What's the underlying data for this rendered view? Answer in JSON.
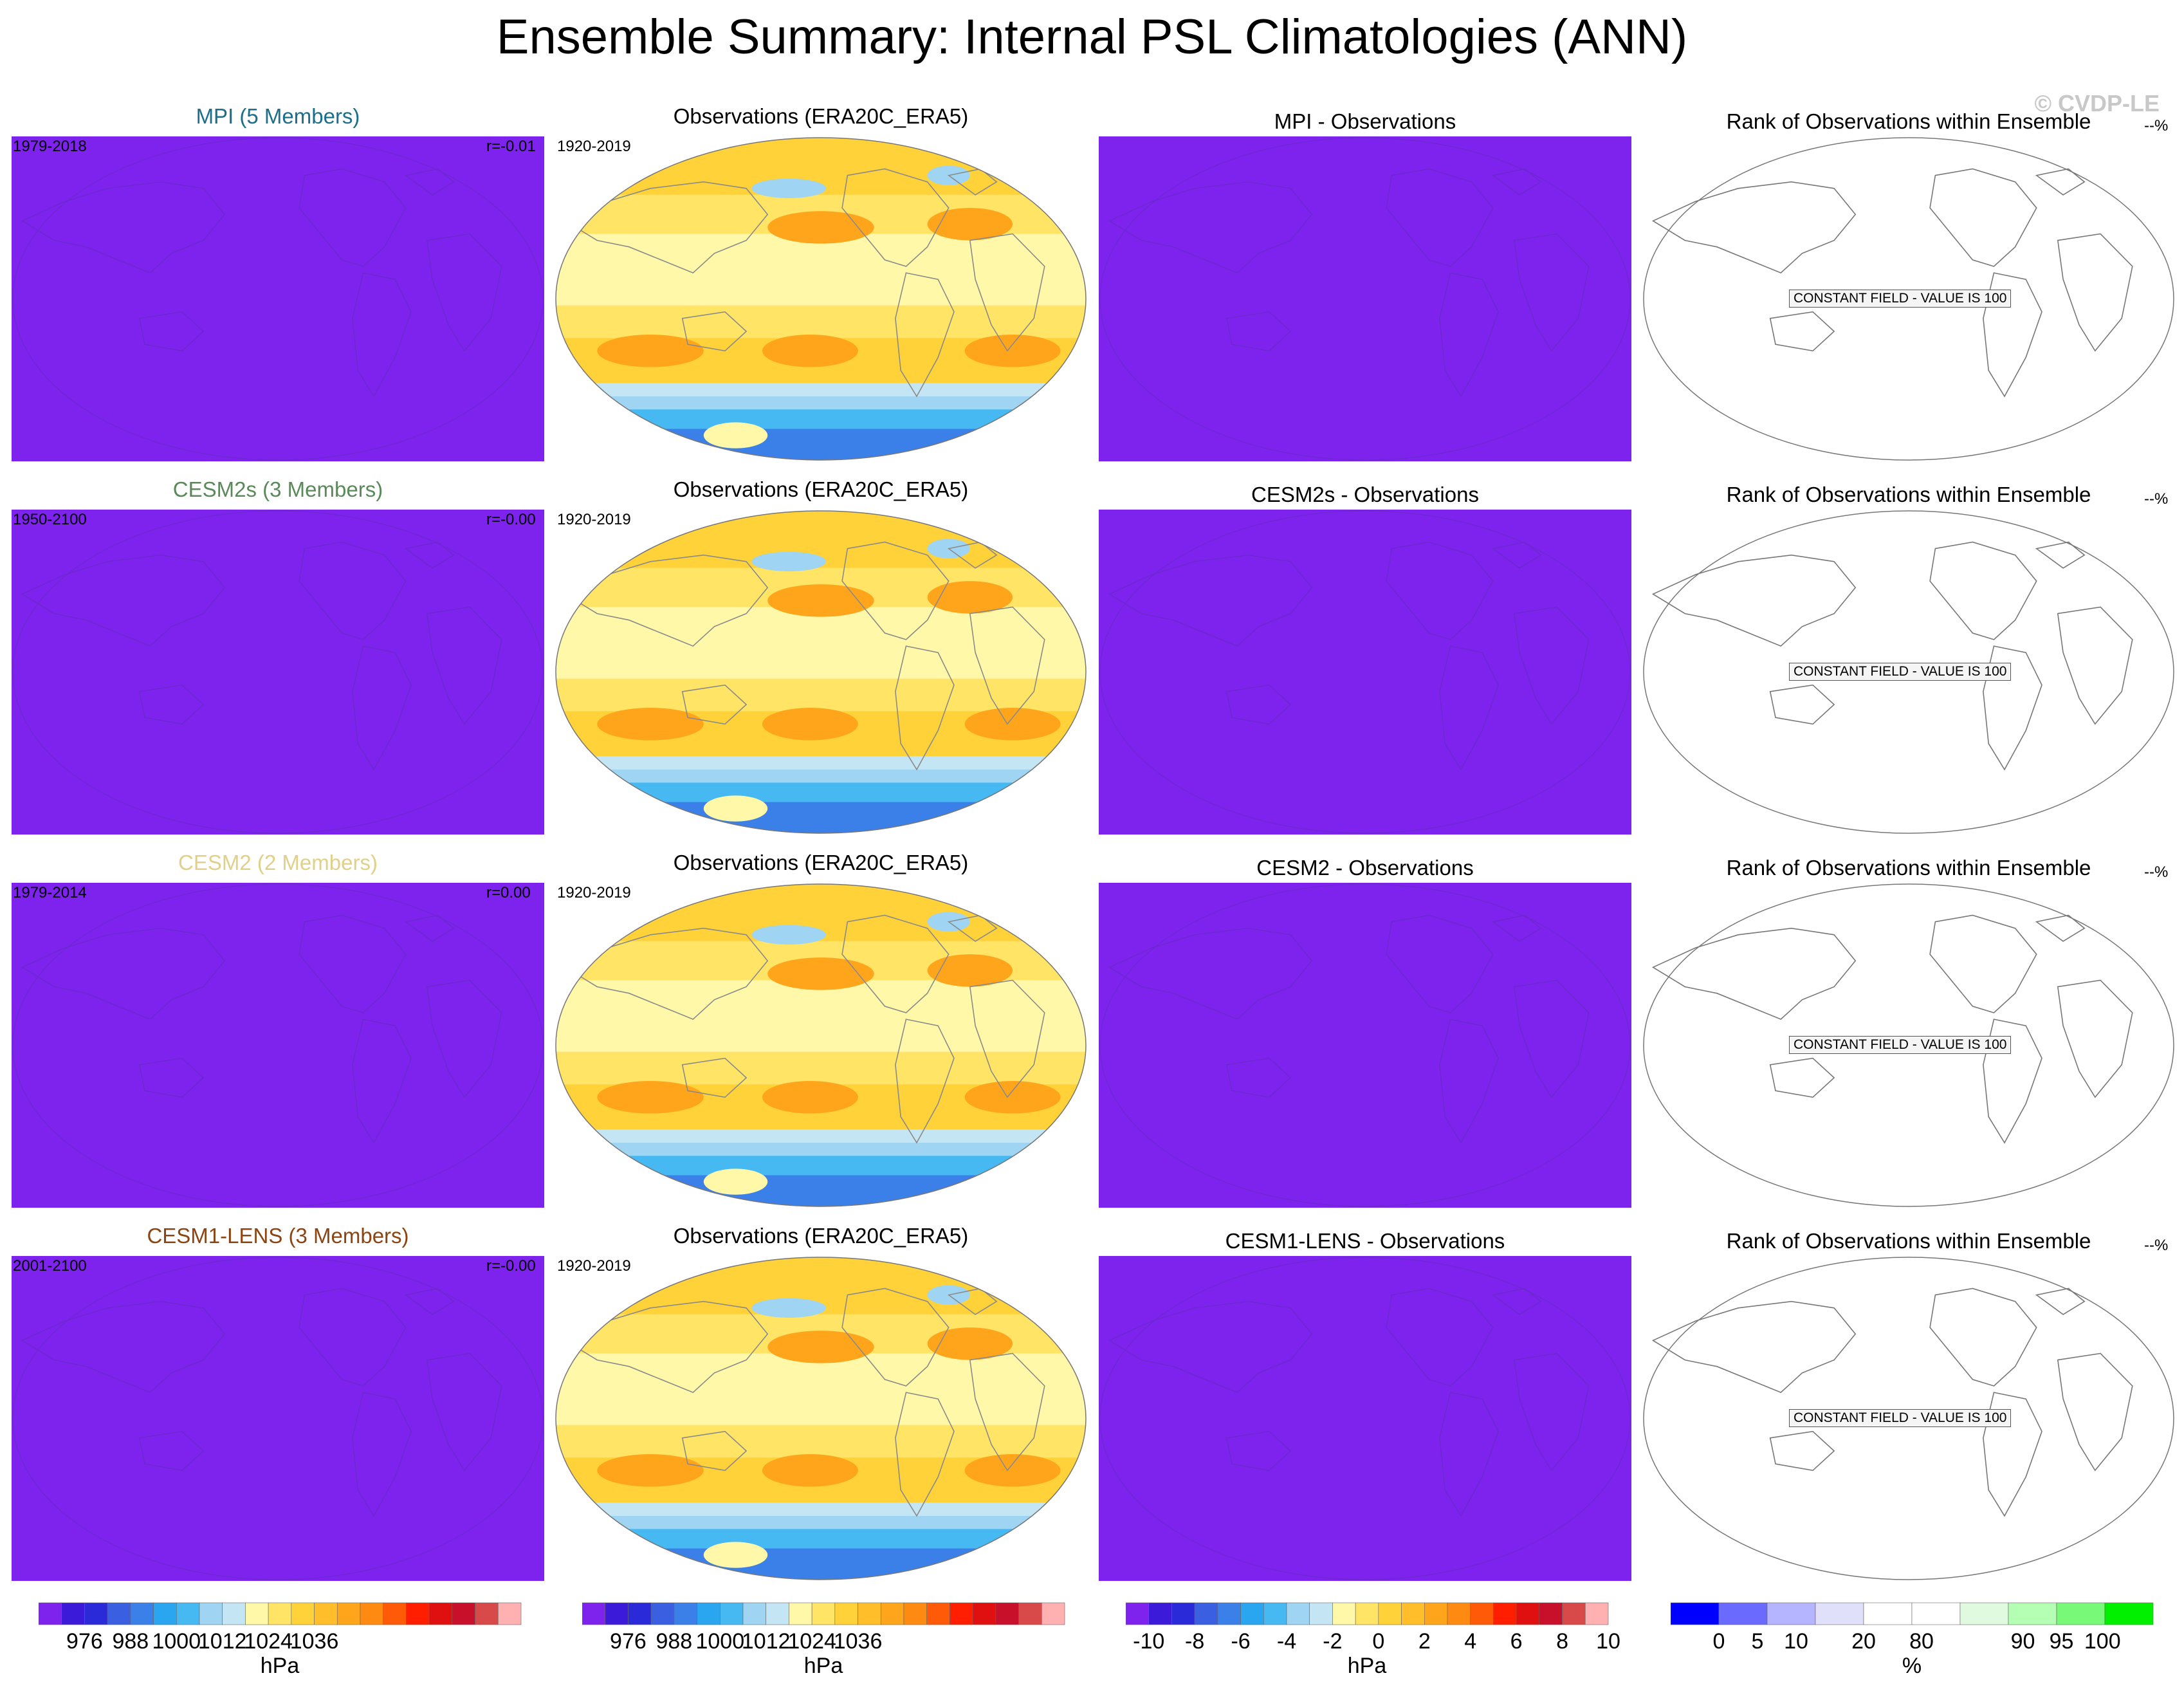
{
  "page": {
    "title": "Ensemble Summary: Internal PSL Climatologies (ANN)",
    "watermark": "© CVDP-LE"
  },
  "colors": {
    "model_fill": "#7e22ee",
    "obs_land_outline": "#8a8a8a",
    "rank_outline": "#777777",
    "mpi_title": "#1b6f8c",
    "cesm2s_title": "#5a8a5a",
    "cesm2_title": "#e0d08a",
    "cesm1_title": "#8b4513"
  },
  "rows": [
    {
      "model_title": "MPI (5 Members)",
      "model_title_color": "#1b6f8c",
      "model_years": "1979-2018",
      "model_r": "r=-0.01",
      "obs_title": "Observations (ERA20C_ERA5)",
      "obs_years": "1920-2019",
      "diff_title": "MPI - Observations",
      "rank_title": "Rank of Observations within Ensemble",
      "rank_pct": "--%",
      "rank_note": "CONSTANT FIELD - VALUE IS 100"
    },
    {
      "model_title": "CESM2s (3 Members)",
      "model_title_color": "#5a8a5a",
      "model_years": "1950-2100",
      "model_r": "r=-0.00",
      "obs_title": "Observations (ERA20C_ERA5)",
      "obs_years": "1920-2019",
      "diff_title": "CESM2s - Observations",
      "rank_title": "Rank of Observations within Ensemble",
      "rank_pct": "--%",
      "rank_note": "CONSTANT FIELD - VALUE IS 100"
    },
    {
      "model_title": "CESM2 (2 Members)",
      "model_title_color": "#e0d08a",
      "model_years": "1979-2014",
      "model_r": "r=0.00",
      "obs_title": "Observations (ERA20C_ERA5)",
      "obs_years": "1920-2019",
      "diff_title": "CESM2 - Observations",
      "rank_title": "Rank of Observations within Ensemble",
      "rank_pct": "--%",
      "rank_note": "CONSTANT FIELD - VALUE IS 100"
    },
    {
      "model_title": "CESM1-LENS (3 Members)",
      "model_title_color": "#8b4513",
      "model_years": "2001-2100",
      "model_r": "r=-0.00",
      "obs_title": "Observations (ERA20C_ERA5)",
      "obs_years": "1920-2019",
      "diff_title": "CESM1-LENS - Observations",
      "rank_title": "Rank of Observations within Ensemble",
      "rank_pct": "--%",
      "rank_note": "CONSTANT FIELD - VALUE IS 100"
    }
  ],
  "chart_data": [
    {
      "type": "colorbar",
      "units": "hPa",
      "colors": [
        "#7e22ee",
        "#3b1bd9",
        "#2a2ad8",
        "#3a5fe0",
        "#3a80e8",
        "#2aa6f0",
        "#46b8f2",
        "#9fd4f2",
        "#c4e6f4",
        "#fff8a8",
        "#ffe466",
        "#ffd23a",
        "#ffbe2a",
        "#ffa51c",
        "#ff8a12",
        "#ff5a08",
        "#ff1e00",
        "#e01010",
        "#c8102a",
        "#d84a4a",
        "#ffb0b0"
      ],
      "tick_labels": [
        "976",
        "988",
        "1000",
        "1012",
        "1024",
        "1036"
      ]
    },
    {
      "type": "colorbar",
      "units": "hPa",
      "colors": [
        "#7e22ee",
        "#3b1bd9",
        "#2a2ad8",
        "#3a5fe0",
        "#3a80e8",
        "#2aa6f0",
        "#46b8f2",
        "#9fd4f2",
        "#c4e6f4",
        "#fff8a8",
        "#ffe466",
        "#ffd23a",
        "#ffbe2a",
        "#ffa51c",
        "#ff8a12",
        "#ff5a08",
        "#ff1e00",
        "#e01010",
        "#c8102a",
        "#d84a4a",
        "#ffb0b0"
      ],
      "tick_labels": [
        "976",
        "988",
        "1000",
        "1012",
        "1024",
        "1036"
      ]
    },
    {
      "type": "colorbar",
      "units": "hPa",
      "colors": [
        "#7e22ee",
        "#3b1bd9",
        "#2a2ad8",
        "#3a5fe0",
        "#3a80e8",
        "#2aa6f0",
        "#46b8f2",
        "#9fd4f2",
        "#c4e6f4",
        "#fff8a8",
        "#ffe466",
        "#ffd23a",
        "#ffbe2a",
        "#ffa51c",
        "#ff8a12",
        "#ff5a08",
        "#ff1e00",
        "#e01010",
        "#c8102a",
        "#d84a4a",
        "#ffb0b0"
      ],
      "tick_labels": [
        "-10",
        "-8",
        "-6",
        "-4",
        "-2",
        "0",
        "2",
        "4",
        "6",
        "8",
        "10"
      ]
    },
    {
      "type": "colorbar",
      "units": "%",
      "colors": [
        "#0000ff",
        "#6a6aff",
        "#b4b4ff",
        "#e0e0fa",
        "#ffffff",
        "#ffffff",
        "#e0fae0",
        "#b4ffb4",
        "#78fa78",
        "#00f000"
      ],
      "tick_labels": [
        "0",
        "5",
        "10",
        "20",
        "80",
        "90",
        "95",
        "100"
      ]
    }
  ]
}
